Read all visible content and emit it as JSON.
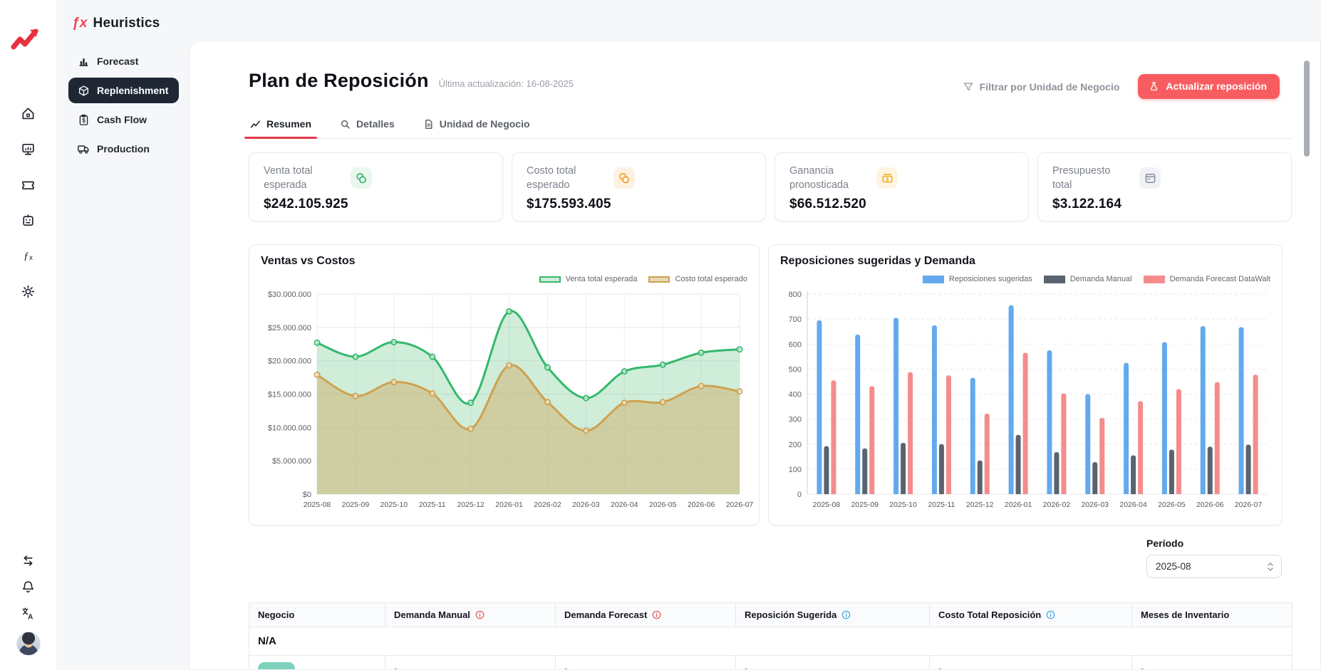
{
  "rail": {
    "icons": [
      "home",
      "dashboard-monitor",
      "ticket",
      "assistant-bot",
      "functions",
      "settings"
    ],
    "bottom_icons": [
      "collapse-arrows",
      "notifications-bell",
      "translate",
      "user-avatar"
    ]
  },
  "sidebar": {
    "brand": {
      "prefix": "ƒx",
      "name": "Heuristics"
    },
    "items": [
      {
        "label": "Forecast",
        "icon": "bar-chart",
        "active": false
      },
      {
        "label": "Replenishment",
        "icon": "package-box",
        "active": true
      },
      {
        "label": "Cash Flow",
        "icon": "clipboard-dollar",
        "active": false
      },
      {
        "label": "Production",
        "icon": "truck",
        "active": false
      }
    ]
  },
  "header": {
    "title": "Plan de Reposición",
    "last_update": "Última actualización: 16-08-2025",
    "filter_label": "Filtrar por Unidad de Negocio",
    "update_button": "Actualizar reposición",
    "accent_red": "#f75d60"
  },
  "tabs": [
    {
      "label": "Resumen",
      "icon": "line-chart",
      "active": true
    },
    {
      "label": "Detalles",
      "icon": "magnifier",
      "active": false
    },
    {
      "label": "Unidad de Negocio",
      "icon": "document",
      "active": false
    }
  ],
  "kpis": [
    {
      "label": "Venta total esperada",
      "value": "$242.105.925",
      "icon": "coins",
      "accent": "#2eb567",
      "bg": "#e9f7ee"
    },
    {
      "label": "Costo total esperado",
      "value": "$175.593.405",
      "icon": "coins",
      "accent": "#f59a1d",
      "bg": "#fdf2e2"
    },
    {
      "label": "Ganancia pronosticada",
      "value": "$66.512.520",
      "icon": "money-bill",
      "accent": "#eeae1f",
      "bg": "#fdf5e2"
    },
    {
      "label": "Presupuesto total",
      "value": "$3.122.164",
      "icon": "budget-card",
      "accent": "#868d9a",
      "bg": "#f1f2f5"
    }
  ],
  "chart_data": [
    {
      "type": "line",
      "title": "Ventas vs Costos",
      "x": [
        "2025-08",
        "2025-09",
        "2025-10",
        "2025-11",
        "2025-12",
        "2026-01",
        "2026-02",
        "2026-03",
        "2026-04",
        "2026-05",
        "2026-06",
        "2026-07"
      ],
      "series": [
        {
          "name": "Venta total esperada",
          "color": "#34b86c",
          "fill": "rgba(110,199,141,0.33)",
          "values": [
            22700000,
            20600000,
            22800000,
            20600000,
            13700000,
            27400000,
            19000000,
            14400000,
            18400000,
            19400000,
            21200000,
            21700000
          ]
        },
        {
          "name": "Costo total esperado",
          "color": "#cfa14f",
          "fill": "rgba(206,172,103,0.48)",
          "values": [
            17900000,
            14700000,
            16800000,
            15100000,
            9800000,
            19300000,
            13800000,
            9500000,
            13700000,
            13800000,
            16200000,
            15400000
          ]
        }
      ],
      "ylim": [
        0,
        30000000
      ],
      "ytick": 5000000,
      "yprefix": "$",
      "grid": "full",
      "legend_position": "top-right"
    },
    {
      "type": "bar",
      "title": "Reposiciones sugeridas y Demanda",
      "categories": [
        "2025-08",
        "2025-09",
        "2025-10",
        "2025-11",
        "2025-12",
        "2026-01",
        "2026-02",
        "2026-03",
        "2026-04",
        "2026-05",
        "2026-06",
        "2026-07"
      ],
      "series": [
        {
          "name": "Reposiciones sugeridas",
          "color": "#63a9ee",
          "values": [
            695,
            638,
            705,
            675,
            465,
            755,
            575,
            400,
            525,
            608,
            672,
            668
          ]
        },
        {
          "name": "Demanda Manual",
          "color": "#5a6370",
          "values": [
            192,
            183,
            205,
            200,
            135,
            237,
            168,
            128,
            155,
            178,
            190,
            198
          ]
        },
        {
          "name": "Demanda Forecast DataWalt",
          "color": "#f48c8c",
          "values": [
            455,
            432,
            488,
            475,
            322,
            565,
            403,
            305,
            372,
            420,
            448,
            478
          ]
        }
      ],
      "ylim": [
        0,
        800
      ],
      "ytick": 100,
      "yprefix": "",
      "grid": "dashed-horizontal",
      "legend_position": "top-right"
    }
  ],
  "period": {
    "label": "Período",
    "value": "2025-08"
  },
  "table": {
    "columns": [
      {
        "label": "Negocio",
        "info_color": null
      },
      {
        "label": "Demanda Manual",
        "info_color": "#e25555"
      },
      {
        "label": "Demanda Forecast",
        "info_color": "#e25555"
      },
      {
        "label": "Reposición Sugerida",
        "info_color": "#3da5e0"
      },
      {
        "label": "Costo Total Reposición",
        "info_color": "#3da5e0"
      },
      {
        "label": "Meses de Inventario",
        "info_color": null
      }
    ],
    "group_label": "N/A",
    "partial_row": {
      "badge_color": "#7fd1bd",
      "values": [
        "-",
        "-",
        "-",
        "-",
        "-"
      ]
    }
  }
}
